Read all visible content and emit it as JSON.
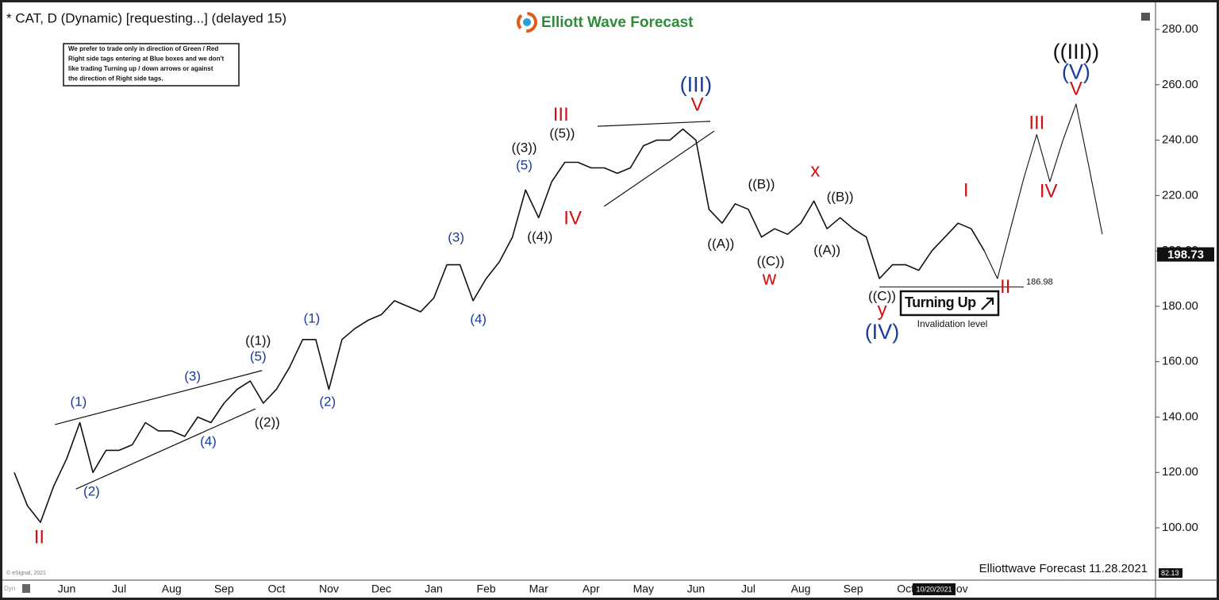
{
  "chart_data": {
    "type": "line",
    "title": "* CAT, D (Dynamic) [requesting...] (delayed 15)",
    "logo": "Elliott Wave Forecast",
    "note": [
      "We prefer to trade only in direction of Green / Red",
      "Right side tags entering at Blue boxes and we don't",
      "like trading Turning up / down arrows or against",
      "the direction of Right side tags."
    ],
    "footer": "Elliottwave Forecast 11.28.2021",
    "copyright": "© eSignal, 2021",
    "corner": "Dyn",
    "cursor_date": "10/20/2021",
    "signal": "Turning Up",
    "invalidation_label": "Invalidation level",
    "invalidation": 186.98,
    "last_price": 198.73,
    "categories": [
      null,
      null,
      null,
      null,
      "Jun",
      null,
      null,
      null,
      "Jul",
      null,
      null,
      null,
      "Aug",
      null,
      null,
      null,
      "Sep",
      null,
      null,
      null,
      "Oct",
      null,
      null,
      null,
      "Nov",
      null,
      null,
      null,
      "Dec",
      null,
      null,
      null,
      "Jan",
      null,
      null,
      null,
      "Feb",
      null,
      null,
      null,
      "Mar",
      null,
      null,
      null,
      "Apr",
      null,
      null,
      null,
      "May",
      null,
      null,
      null,
      "Jun",
      null,
      null,
      null,
      "Jul",
      null,
      null,
      null,
      "Aug",
      null,
      null,
      null,
      "Sep",
      null,
      null,
      null,
      "Oct",
      null,
      null,
      null,
      "Nov",
      null,
      null,
      null,
      null,
      null,
      null,
      null,
      null,
      null,
      null,
      null,
      null,
      null,
      null
    ],
    "series": [
      {
        "color": "#111111",
        "values": [
          120,
          108,
          102,
          115,
          125,
          138,
          120,
          128,
          128,
          130,
          138,
          135,
          135,
          133,
          140,
          138,
          145,
          150,
          153,
          145,
          150,
          158,
          168,
          168,
          150,
          168,
          172,
          175,
          177,
          182,
          180,
          178,
          183,
          195,
          195,
          182,
          190,
          196,
          205,
          222,
          212,
          225,
          232,
          232,
          230,
          230,
          228,
          230,
          238,
          240,
          240,
          244,
          240,
          215,
          210,
          217,
          215,
          205,
          208,
          206,
          210,
          218,
          208,
          212,
          208,
          205,
          190,
          195,
          195,
          193,
          200,
          205,
          210,
          208,
          200,
          null,
          null,
          null,
          null,
          null,
          null,
          null,
          null,
          null,
          null,
          null,
          null
        ]
      },
      {
        "color": "#111111",
        "values": [
          null,
          null,
          null,
          null,
          null,
          null,
          null,
          null,
          null,
          null,
          null,
          null,
          null,
          null,
          null,
          null,
          null,
          null,
          null,
          null,
          null,
          null,
          null,
          null,
          null,
          null,
          null,
          null,
          null,
          null,
          null,
          null,
          null,
          null,
          null,
          null,
          null,
          null,
          null,
          null,
          null,
          null,
          null,
          null,
          null,
          null,
          null,
          null,
          null,
          null,
          null,
          null,
          null,
          null,
          null,
          null,
          null,
          null,
          null,
          null,
          null,
          null,
          null,
          null,
          null,
          null,
          null,
          null,
          null,
          null,
          null,
          null,
          null,
          null,
          200,
          190,
          208,
          226,
          242,
          225,
          240,
          253,
          230,
          206,
          null,
          null,
          null
        ]
      }
    ],
    "ylim": [
      82.13,
      288
    ],
    "yticks": [
      {
        "value": 100,
        "label": "100.00"
      },
      {
        "value": 120,
        "label": "120.00"
      },
      {
        "value": 140,
        "label": "140.00"
      },
      {
        "value": 160,
        "label": "160.00"
      },
      {
        "value": 180,
        "label": "180.00"
      },
      {
        "value": 200,
        "label": "200.00"
      },
      {
        "value": 220,
        "label": "220.00"
      },
      {
        "value": 240,
        "label": "240.00"
      },
      {
        "value": 260,
        "label": "260.00"
      },
      {
        "value": 280,
        "label": "280.00"
      }
    ],
    "trend_lines": [
      {
        "from": [
          3.1,
          137.3
        ],
        "to": [
          18.9,
          156.8
        ]
      },
      {
        "from": [
          4.7,
          114.0
        ],
        "to": [
          18.4,
          143.0
        ]
      },
      {
        "from": [
          44.5,
          245.0
        ],
        "to": [
          53.1,
          246.8
        ]
      },
      {
        "from": [
          45.0,
          216.1
        ],
        "to": [
          53.4,
          243.3
        ]
      }
    ],
    "annotations": [
      {
        "text": "II",
        "x": 1.9,
        "y": 96.3,
        "color": "#d01010"
      },
      {
        "text": "(1)",
        "x": 4.9,
        "y": 145.3,
        "color": "#1a3a9c"
      },
      {
        "text": "(2)",
        "x": 5.9,
        "y": 112.9,
        "color": "#1a3a9c"
      },
      {
        "text": "(3)",
        "x": 13.6,
        "y": 154.5,
        "color": "#1a3a9c"
      },
      {
        "text": "(4)",
        "x": 14.8,
        "y": 131.0,
        "color": "#1a3a9c"
      },
      {
        "text": "(5)",
        "x": 18.6,
        "y": 161.6,
        "color": "#1a3a9c"
      },
      {
        "text": "((1))",
        "x": 18.6,
        "y": 167.4,
        "color": "#111111"
      },
      {
        "text": "((2))",
        "x": 19.3,
        "y": 137.8,
        "color": "#111111"
      },
      {
        "text": "(1)",
        "x": 22.7,
        "y": 175.4,
        "color": "#1a3a9c"
      },
      {
        "text": "(2)",
        "x": 23.9,
        "y": 145.3,
        "color": "#1a3a9c"
      },
      {
        "text": "(3)",
        "x": 33.7,
        "y": 204.6,
        "color": "#1a3a9c"
      },
      {
        "text": "(4)",
        "x": 35.4,
        "y": 175.1,
        "color": "#1a3a9c"
      },
      {
        "text": "(5)",
        "x": 38.9,
        "y": 230.7,
        "color": "#1a3a9c"
      },
      {
        "text": "((3))",
        "x": 38.9,
        "y": 237.0,
        "color": "#111111"
      },
      {
        "text": "((4))",
        "x": 40.1,
        "y": 204.9,
        "color": "#111111"
      },
      {
        "text": "((5))",
        "x": 41.8,
        "y": 242.2,
        "color": "#111111"
      },
      {
        "text": "III",
        "x": 41.7,
        "y": 248.8,
        "color": "#d01010"
      },
      {
        "text": "IV",
        "x": 42.6,
        "y": 211.5,
        "color": "#d01010"
      },
      {
        "text": "(III)",
        "x": 52.0,
        "y": 259.6,
        "color": "#1a3a9c",
        "big": true
      },
      {
        "text": "V",
        "x": 52.1,
        "y": 252.5,
        "color": "#d01010"
      },
      {
        "text": "((A))",
        "x": 53.9,
        "y": 202.3,
        "color": "#111111"
      },
      {
        "text": "((B))",
        "x": 57.0,
        "y": 223.8,
        "color": "#111111"
      },
      {
        "text": "((C))",
        "x": 57.7,
        "y": 196.0,
        "color": "#111111"
      },
      {
        "text": "w",
        "x": 57.6,
        "y": 189.7,
        "color": "#d01010"
      },
      {
        "text": "x",
        "x": 61.1,
        "y": 228.7,
        "color": "#d01010"
      },
      {
        "text": "((B))",
        "x": 63.0,
        "y": 219.2,
        "color": "#111111"
      },
      {
        "text": "((A))",
        "x": 62.0,
        "y": 200.0,
        "color": "#111111"
      },
      {
        "text": "((C))",
        "x": 66.2,
        "y": 183.4,
        "color": "#111111"
      },
      {
        "text": "y",
        "x": 66.2,
        "y": 178.3,
        "color": "#d01010"
      },
      {
        "text": "(IV)",
        "x": 66.2,
        "y": 170.2,
        "color": "#1a3a9c",
        "big": true
      },
      {
        "text": "I",
        "x": 72.6,
        "y": 221.5,
        "color": "#d01010"
      },
      {
        "text": "II",
        "x": 75.6,
        "y": 186.6,
        "color": "#d01010"
      },
      {
        "text": "III",
        "x": 78.0,
        "y": 245.9,
        "color": "#d01010"
      },
      {
        "text": "IV",
        "x": 78.9,
        "y": 221.2,
        "color": "#d01010"
      },
      {
        "text": "V",
        "x": 81.0,
        "y": 258.2,
        "color": "#d01010"
      },
      {
        "text": "(V)",
        "x": 81.0,
        "y": 264.2,
        "color": "#1a3a9c",
        "big": true
      },
      {
        "text": "((III))",
        "x": 81.0,
        "y": 271.4,
        "color": "#111111",
        "big": true
      }
    ]
  }
}
